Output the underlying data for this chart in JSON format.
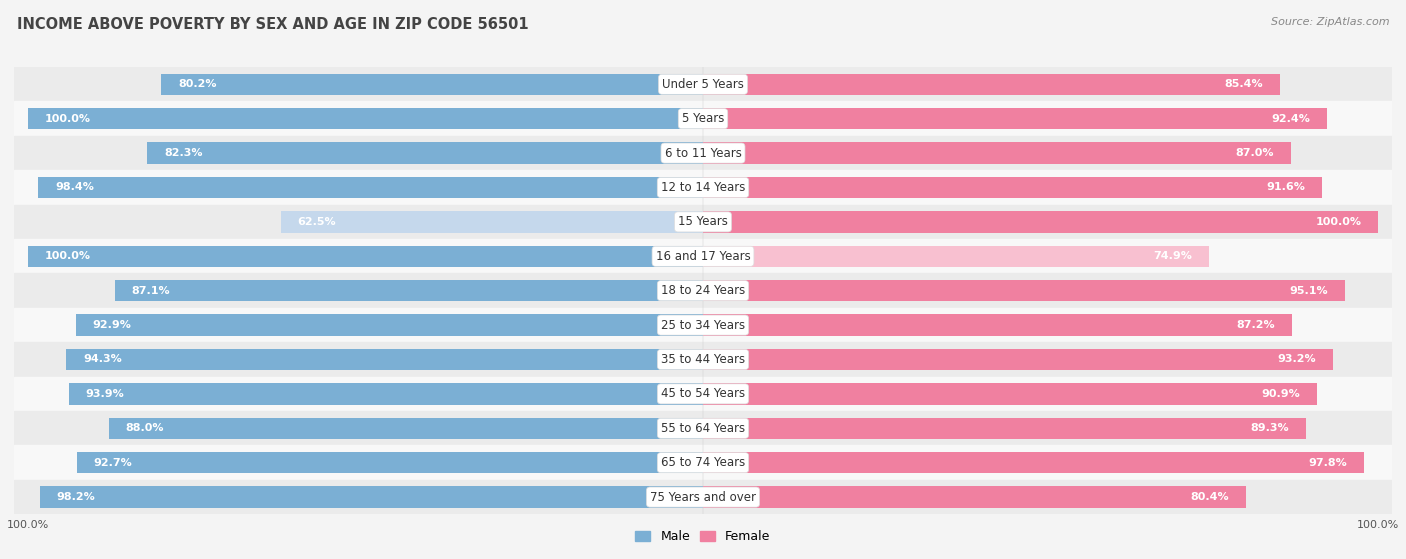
{
  "title": "INCOME ABOVE POVERTY BY SEX AND AGE IN ZIP CODE 56501",
  "source": "Source: ZipAtlas.com",
  "categories": [
    "Under 5 Years",
    "5 Years",
    "6 to 11 Years",
    "12 to 14 Years",
    "15 Years",
    "16 and 17 Years",
    "18 to 24 Years",
    "25 to 34 Years",
    "35 to 44 Years",
    "45 to 54 Years",
    "55 to 64 Years",
    "65 to 74 Years",
    "75 Years and over"
  ],
  "male_values": [
    80.2,
    100.0,
    82.3,
    98.4,
    62.5,
    100.0,
    87.1,
    92.9,
    94.3,
    93.9,
    88.0,
    92.7,
    98.2
  ],
  "female_values": [
    85.4,
    92.4,
    87.0,
    91.6,
    100.0,
    74.9,
    95.1,
    87.2,
    93.2,
    90.9,
    89.3,
    97.8,
    80.4
  ],
  "male_color": "#7bafd4",
  "female_color": "#f080a0",
  "male_color_light": "#c5d8ec",
  "female_color_light": "#f8c0d0",
  "background_color": "#f4f4f4",
  "row_even_color": "#ebebeb",
  "row_odd_color": "#f8f8f8",
  "label_fontsize": 8,
  "title_fontsize": 10.5,
  "source_fontsize": 8,
  "category_fontsize": 8.5
}
